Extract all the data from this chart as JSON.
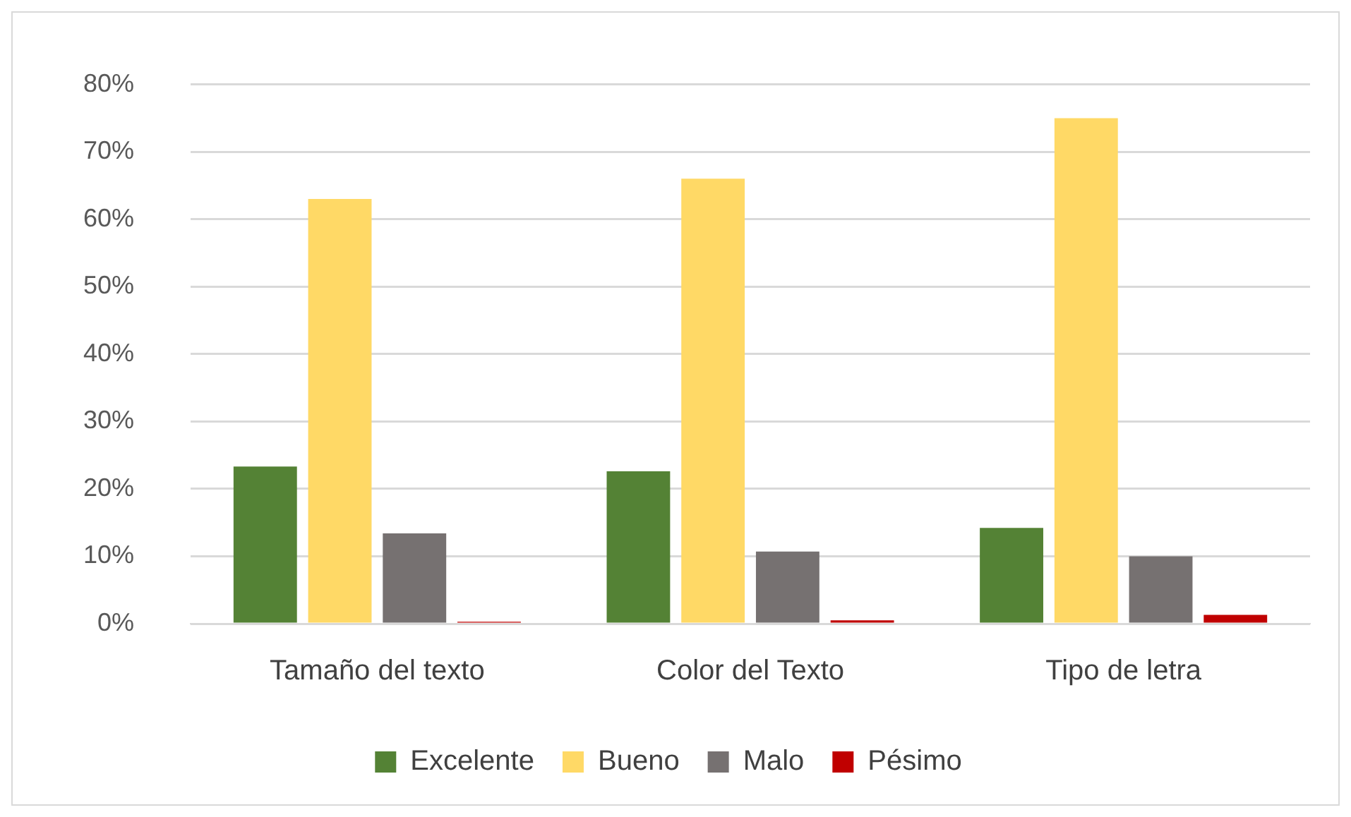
{
  "chart_data": {
    "type": "bar",
    "categories": [
      "Tamaño del texto",
      "Color del Texto",
      "Tipo de letra"
    ],
    "series": [
      {
        "name": "Excelente",
        "color": "#548235",
        "values": [
          23.3,
          22.6,
          14.2
        ]
      },
      {
        "name": "Bueno",
        "color": "#ffd966",
        "values": [
          63,
          66,
          75
        ]
      },
      {
        "name": "Malo",
        "color": "#767171",
        "values": [
          13.4,
          10.7,
          10
        ]
      },
      {
        "name": "Pésimo",
        "color": "#c00000",
        "values": [
          0.3,
          0.5,
          1.3
        ]
      }
    ],
    "ylim": [
      0,
      80
    ],
    "yticks": [
      {
        "value": 0,
        "label": "0%"
      },
      {
        "value": 10,
        "label": "10%"
      },
      {
        "value": 20,
        "label": "20%"
      },
      {
        "value": 30,
        "label": "30%"
      },
      {
        "value": 40,
        "label": "40%"
      },
      {
        "value": 50,
        "label": "50%"
      },
      {
        "value": 60,
        "label": "60%"
      },
      {
        "value": 70,
        "label": "70%"
      },
      {
        "value": 80,
        "label": "80%"
      }
    ],
    "grid": "y",
    "legend": "bottom"
  }
}
